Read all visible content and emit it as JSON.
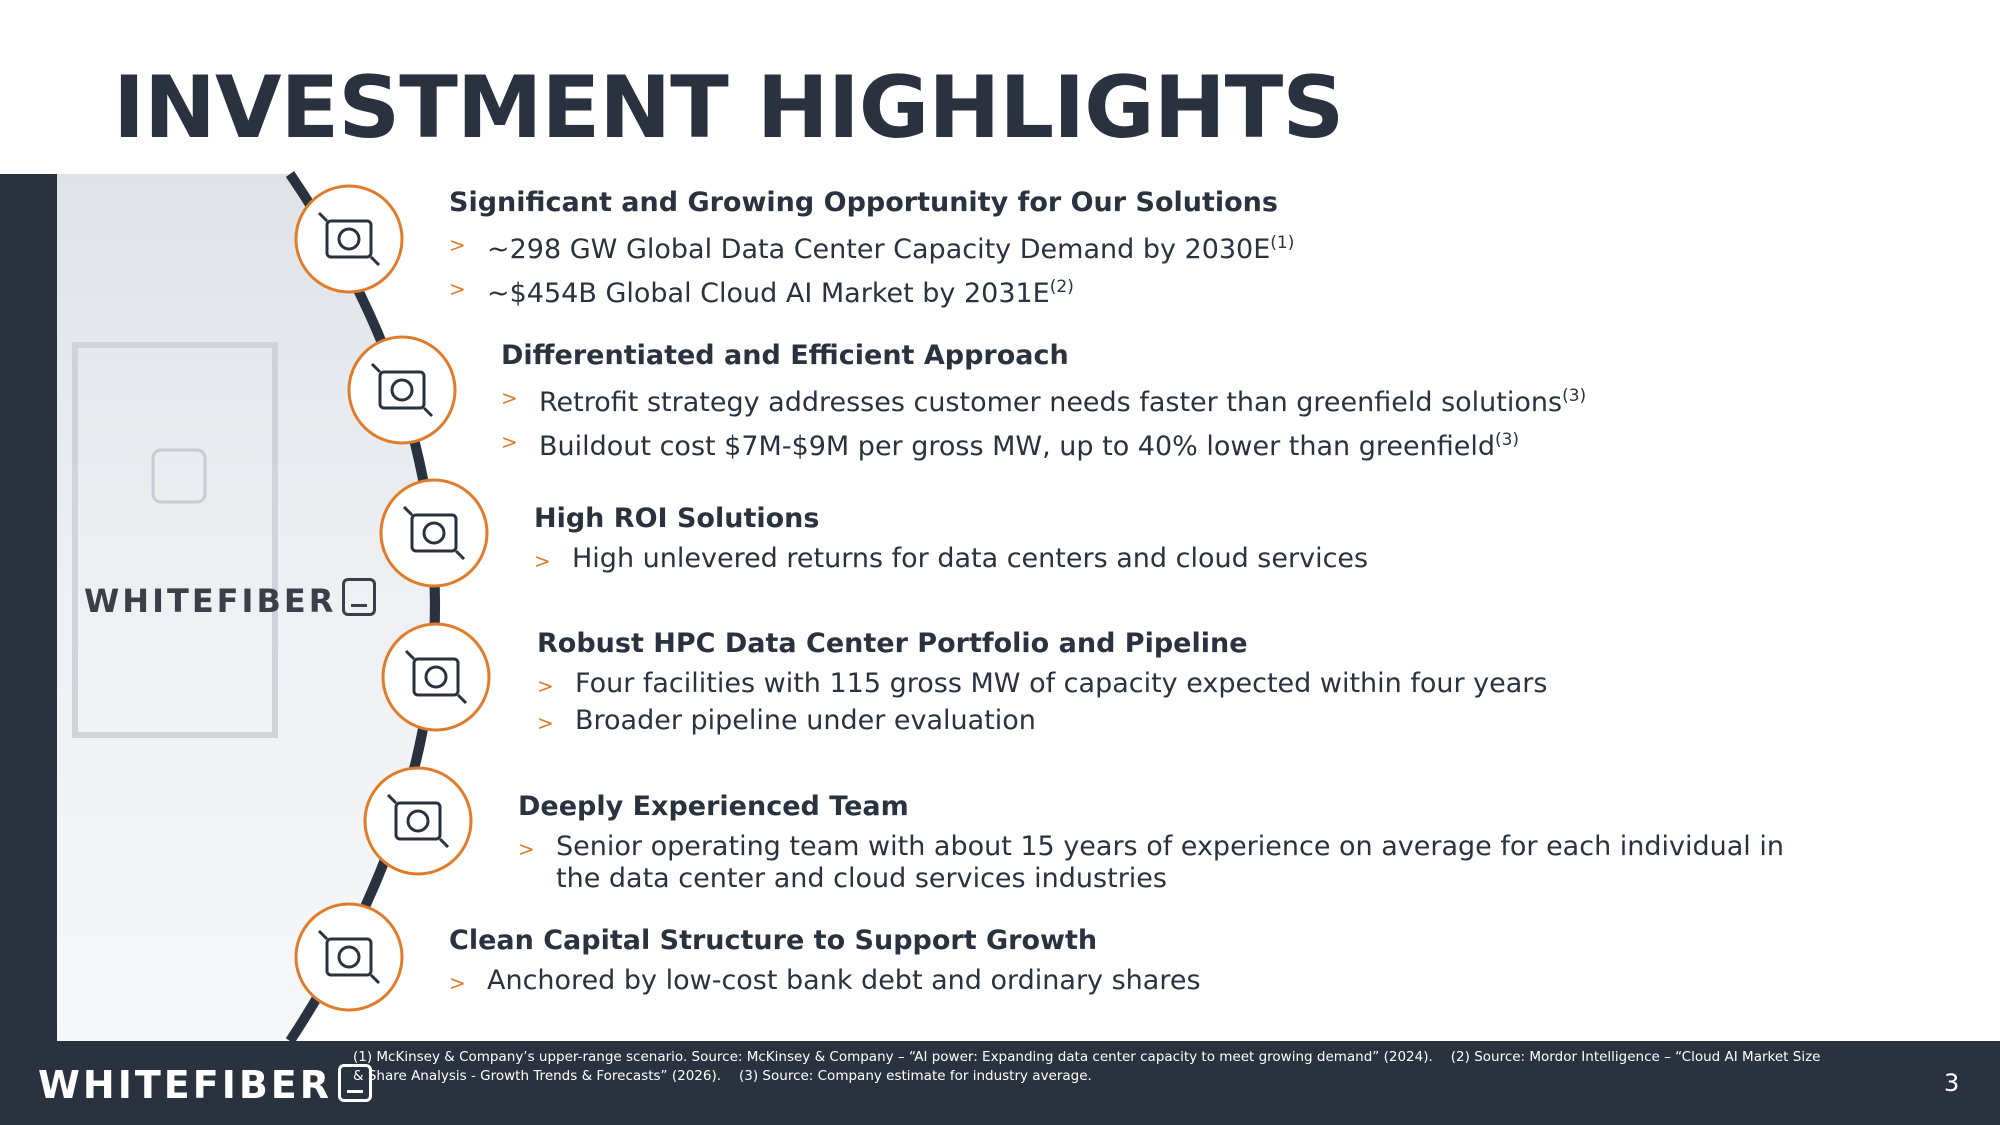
{
  "header": {
    "title": "INVESTMENT HIGHLIGHTS"
  },
  "brand": {
    "image_logo": "WHITEFIBER",
    "footer_logo": "WHITEFIBER"
  },
  "bullet_marker": ">",
  "sections": [
    {
      "heading": "Significant and Growing Opportunity for Our Solutions",
      "bullets": [
        {
          "text": "~298 GW Global Data Center Capacity Demand by 2030E",
          "note": "(1)"
        },
        {
          "text": "~$454B Global Cloud AI Market by 2031E",
          "note": "(2)"
        }
      ]
    },
    {
      "heading": "Differentiated and Efficient Approach",
      "bullets": [
        {
          "text": "Retrofit strategy addresses customer needs faster than greenfield solutions",
          "note": "(3)"
        },
        {
          "text": "Buildout cost $7M-$9M per gross MW, up to 40% lower than greenfield",
          "note": "(3)"
        }
      ]
    },
    {
      "heading": "High ROI Solutions",
      "bullets": [
        {
          "text": "High unlevered returns for data centers and cloud services"
        }
      ]
    },
    {
      "heading": "Robust HPC Data Center Portfolio and Pipeline",
      "bullets": [
        {
          "text": "Four facilities with 115 gross MW of capacity expected within four years"
        },
        {
          "text": "Broader pipeline under evaluation"
        }
      ]
    },
    {
      "heading": "Deeply Experienced Team",
      "bullets": [
        {
          "text": "Senior operating team with about 15 years of experience on average for each individual in the data center and cloud services industries"
        }
      ]
    },
    {
      "heading": "Clean Capital Structure to Support Growth",
      "bullets": [
        {
          "text": "Anchored by low-cost bank debt and ordinary shares"
        }
      ]
    }
  ],
  "footer": {
    "footnotes": [
      "(1) McKinsey & Company’s upper-range scenario. Source: McKinsey & Company – “AI power: Expanding data center capacity to meet growing demand” (2024).",
      "(2) Source: Mordor Intelligence – “Cloud AI Market Size & Share Analysis - Growth Trends & Forecasts” (2026).",
      "(3) Source: Company estimate for industry average."
    ],
    "page_number": 3
  }
}
